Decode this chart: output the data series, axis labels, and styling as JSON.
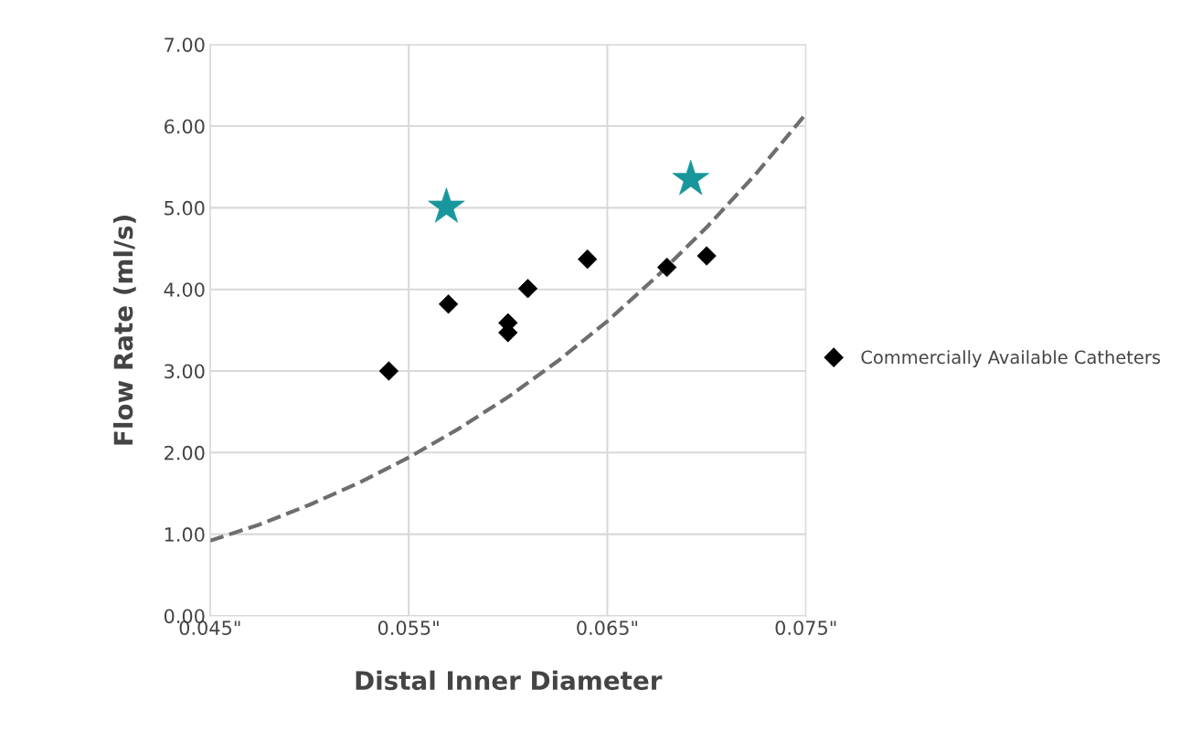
{
  "chart_data": {
    "type": "scatter",
    "xlabel": "Distal Inner Diameter",
    "ylabel": "Flow Rate (ml/s)",
    "xlim": [
      0.045,
      0.075
    ],
    "ylim": [
      0,
      7
    ],
    "xticks": [
      {
        "value": 0.045,
        "label": "0.045\""
      },
      {
        "value": 0.055,
        "label": "0.055\""
      },
      {
        "value": 0.065,
        "label": "0.065\""
      },
      {
        "value": 0.075,
        "label": "0.075\""
      }
    ],
    "yticks": [
      {
        "value": 0,
        "label": "0.00"
      },
      {
        "value": 1,
        "label": "1.00"
      },
      {
        "value": 2,
        "label": "2.00"
      },
      {
        "value": 3,
        "label": "3.00"
      },
      {
        "value": 4,
        "label": "4.00"
      },
      {
        "value": 5,
        "label": "5.00"
      },
      {
        "value": 6,
        "label": "6.00"
      },
      {
        "value": 7,
        "label": "7.00"
      }
    ],
    "grid": true,
    "legend": "right",
    "series": [
      {
        "type": "line",
        "color": "#6e6e6e",
        "line_style": "dashed",
        "marker": "none",
        "x": [
          0.045,
          0.0475,
          0.05,
          0.0525,
          0.055,
          0.0575,
          0.06,
          0.0625,
          0.065,
          0.0675,
          0.07,
          0.0725,
          0.075
        ],
        "values": [
          0.92,
          1.12,
          1.36,
          1.63,
          1.94,
          2.29,
          2.68,
          3.12,
          3.61,
          4.16,
          4.76,
          5.42,
          6.15
        ]
      },
      {
        "name": "Commercially Available Catheters",
        "color": "#000000",
        "marker": "diamond",
        "x": [
          0.054,
          0.057,
          0.06,
          0.06,
          0.061,
          0.064,
          0.068,
          0.07
        ],
        "values": [
          3.0,
          3.82,
          3.59,
          3.47,
          4.01,
          4.37,
          4.27,
          4.41
        ]
      },
      {
        "color": "#17979b",
        "marker": "star",
        "x": [
          0.0569,
          0.0692
        ],
        "values": [
          5.01,
          5.35
        ]
      }
    ]
  }
}
